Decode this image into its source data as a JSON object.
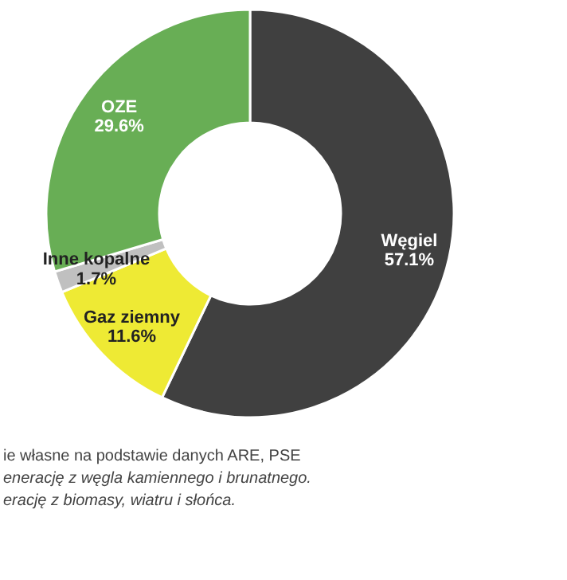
{
  "chart_data": {
    "type": "donut",
    "categories": [
      "Węgiel",
      "Gaz ziemny",
      "Inne kopalne",
      "OZE"
    ],
    "values": [
      57.1,
      11.6,
      1.7,
      29.6
    ],
    "value_labels": [
      "57.1%",
      "11.6%",
      "1.7%",
      "29.6%"
    ],
    "colors": [
      "#404040",
      "#eeea34",
      "#c0c0c0",
      "#68ae55"
    ],
    "annotations": [
      "ie własne na podstawie danych ARE, PSE",
      "enerację z węgla kamiennego i brunatnego.",
      "erację z biomasy, wiatru i słońca."
    ]
  }
}
